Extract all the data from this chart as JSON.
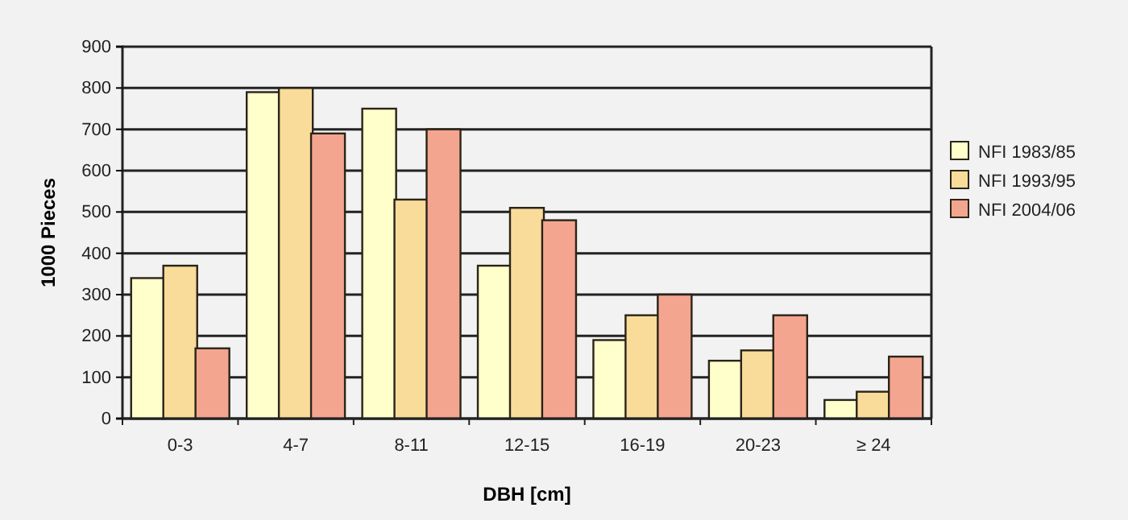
{
  "chart_data": {
    "type": "bar",
    "xlabel": "DBH [cm]",
    "ylabel": "1000 Pieces",
    "categories": [
      "0-3",
      "4-7",
      "8-11",
      "12-15",
      "16-19",
      "20-23",
      "≥ 24"
    ],
    "series": [
      {
        "name": "NFI 1983/85",
        "color": "#ffffcc",
        "values": [
          340,
          790,
          750,
          370,
          190,
          140,
          45
        ]
      },
      {
        "name": "NFI 1993/95",
        "color": "#f9dc9a",
        "values": [
          370,
          800,
          530,
          510,
          250,
          165,
          65
        ]
      },
      {
        "name": "NFI 2004/06",
        "color": "#f4a590",
        "values": [
          170,
          690,
          700,
          480,
          300,
          250,
          150
        ]
      }
    ],
    "ylim": [
      0,
      900
    ],
    "yticks": [
      0,
      100,
      200,
      300,
      400,
      500,
      600,
      700,
      800,
      900
    ],
    "grid": "y",
    "legend": "right"
  }
}
